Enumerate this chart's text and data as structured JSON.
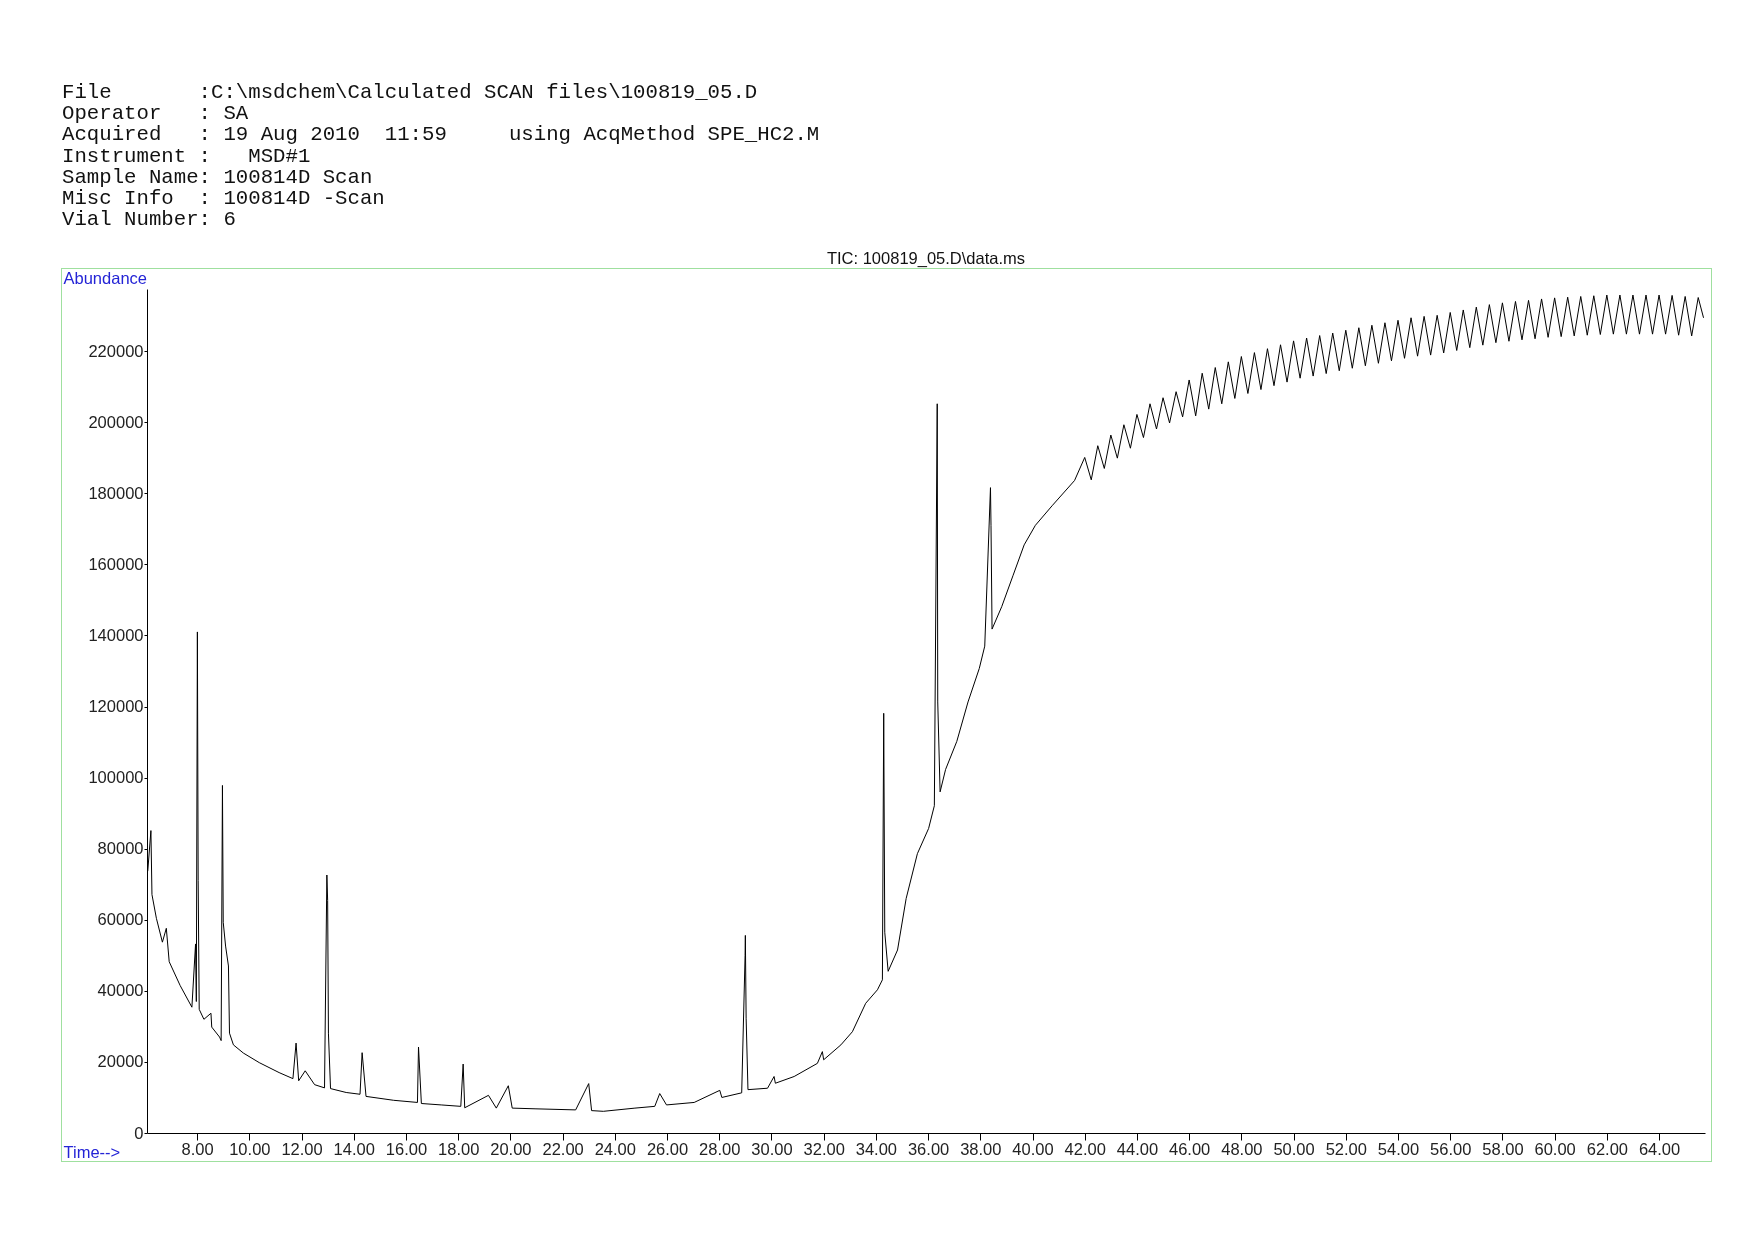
{
  "chart_data": {
    "type": "line",
    "title": "TIC: 100819_05.D\\data.ms",
    "xlabel": "Time-->",
    "ylabel": "Abundance",
    "annotations": [
      "File       :C:\\msdchem\\Calculated SCAN files\\100819_05.D",
      "Operator   : SA",
      "Acquired   : 19 Aug 2010  11:59     using AcqMethod SPE_HC2.M",
      "Instrument :   MSD#1",
      "Sample Name: 100814D Scan",
      "Misc Info  : 100814D -Scan",
      "Vial Number: 6"
    ],
    "x": [
      6.11,
      6.23,
      6.27,
      6.44,
      6.67,
      6.82,
      6.93,
      7.35,
      7.8,
      7.94,
      7.97,
      8.01,
      8.04,
      8.08,
      8.26,
      8.53,
      8.56,
      8.86,
      8.92,
      8.97,
      9.0,
      9.09,
      9.2,
      9.24,
      9.39,
      9.77,
      10.38,
      11.14,
      11.67,
      11.79,
      11.89,
      12.14,
      12.5,
      12.88,
      12.97,
      13.0,
      13.03,
      13.11,
      13.71,
      14.24,
      14.32,
      14.47,
      15.53,
      16.44,
      16.48,
      16.59,
      17.35,
      18.1,
      18.19,
      18.25,
      19.16,
      19.46,
      19.92,
      20.07,
      20.98,
      22.5,
      23.0,
      23.11,
      23.56,
      24.77,
      25.53,
      25.72,
      25.98,
      27.04,
      28.02,
      28.1,
      28.86,
      28.99,
      29.0,
      29.03,
      29.1,
      29.85,
      30.1,
      30.15,
      30.87,
      31.76,
      31.95,
      32.0,
      32.66,
      33.1,
      33.61,
      34.06,
      34.25,
      34.3,
      34.34,
      34.47,
      34.83,
      35.16,
      35.59,
      36.02,
      36.24,
      36.35,
      36.37,
      36.46,
      36.67,
      37.1,
      37.53,
      37.96,
      38.17,
      38.39,
      38.41,
      38.45,
      38.82,
      39.25,
      39.68,
      40.11,
      40.75,
      41.61,
      42.0,
      42.25,
      42.5,
      42.75,
      43.0,
      43.25,
      43.5,
      43.75,
      44.0,
      44.25,
      44.5,
      44.75,
      45.0,
      45.25,
      45.5,
      45.75,
      46.0,
      46.25,
      46.5,
      46.75,
      47.0,
      47.25,
      47.5,
      47.75,
      48.0,
      48.25,
      48.5,
      48.75,
      49.0,
      49.25,
      49.5,
      49.75,
      50.0,
      50.25,
      50.5,
      50.75,
      51.0,
      51.25,
      51.5,
      51.75,
      52.0,
      52.25,
      52.5,
      52.75,
      53.0,
      53.25,
      53.5,
      53.75,
      54.0,
      54.25,
      54.5,
      54.75,
      55.0,
      55.25,
      55.5,
      55.75,
      56.0,
      56.25,
      56.5,
      56.75,
      57.0,
      57.25,
      57.5,
      57.75,
      58.0,
      58.25,
      58.5,
      58.75,
      59.0,
      59.25,
      59.5,
      59.75,
      60.0,
      60.25,
      60.5,
      60.75,
      61.0,
      61.25,
      61.5,
      61.75,
      62.0,
      62.25,
      62.5,
      62.75,
      63.0,
      63.25,
      63.5,
      63.75,
      64.0,
      64.25,
      64.5,
      64.75,
      65.0,
      65.25,
      65.5,
      65.7
    ],
    "values": [
      73800,
      85100,
      67100,
      60400,
      53700,
      57600,
      48200,
      41500,
      35400,
      53200,
      37000,
      141000,
      71000,
      34800,
      32000,
      33700,
      29800,
      27000,
      26000,
      97800,
      59300,
      52600,
      47000,
      28100,
      24800,
      22500,
      19800,
      17000,
      15300,
      25300,
      14700,
      17500,
      13600,
      12700,
      72600,
      65400,
      28100,
      12500,
      11400,
      10900,
      22600,
      10300,
      9200,
      8600,
      24200,
      8300,
      7900,
      7500,
      19400,
      7100,
      10600,
      7000,
      13300,
      7000,
      6800,
      6500,
      13900,
      6300,
      6100,
      7000,
      7500,
      11100,
      7900,
      8600,
      12000,
      10000,
      11300,
      49900,
      55600,
      32300,
      12200,
      12600,
      15900,
      14000,
      15900,
      19600,
      22900,
      20600,
      24800,
      28500,
      36500,
      40300,
      43100,
      118100,
      56500,
      45500,
      51500,
      66000,
      78600,
      85700,
      92100,
      205200,
      121300,
      96000,
      102300,
      110200,
      121300,
      130700,
      137000,
      181600,
      171000,
      141800,
      148100,
      156800,
      165500,
      171000,
      176500,
      183600,
      190100,
      183800,
      193400,
      187000,
      196400,
      189900,
      199300,
      192700,
      202200,
      195700,
      205200,
      198100,
      206900,
      199800,
      208600,
      201500,
      211900,
      201800,
      213800,
      203700,
      215400,
      205200,
      217000,
      206700,
      218500,
      208100,
      219600,
      209200,
      220700,
      210300,
      221800,
      211300,
      222900,
      212400,
      223700,
      213000,
      224400,
      213700,
      225100,
      214500,
      225900,
      215200,
      226600,
      215900,
      227300,
      216600,
      228000,
      217300,
      228700,
      218000,
      229400,
      218600,
      229800,
      218900,
      230100,
      219500,
      230900,
      220200,
      231600,
      221000,
      232400,
      221700,
      233100,
      222400,
      233600,
      222800,
      234000,
      223200,
      234300,
      223500,
      234700,
      223900,
      235000,
      224100,
      235200,
      224300,
      235400,
      224500,
      235600,
      224700,
      235800,
      224800,
      235800,
      224800,
      235800,
      224800,
      235800,
      224800,
      235800,
      224800,
      235700,
      224500,
      235400,
      224300,
      235100,
      229500
    ],
    "color": "#000000",
    "xlim": [
      6.08,
      65.76
    ],
    "ylim": [
      0,
      237500
    ],
    "xticks": [
      {
        "value": 8,
        "label": "8.00"
      },
      {
        "value": 10,
        "label": "10.00"
      },
      {
        "value": 12,
        "label": "12.00"
      },
      {
        "value": 14,
        "label": "14.00"
      },
      {
        "value": 16,
        "label": "16.00"
      },
      {
        "value": 18,
        "label": "18.00"
      },
      {
        "value": 20,
        "label": "20.00"
      },
      {
        "value": 22,
        "label": "22.00"
      },
      {
        "value": 24,
        "label": "24.00"
      },
      {
        "value": 26,
        "label": "26.00"
      },
      {
        "value": 28,
        "label": "28.00"
      },
      {
        "value": 30,
        "label": "30.00"
      },
      {
        "value": 32,
        "label": "32.00"
      },
      {
        "value": 34,
        "label": "34.00"
      },
      {
        "value": 36,
        "label": "36.00"
      },
      {
        "value": 38,
        "label": "38.00"
      },
      {
        "value": 40,
        "label": "40.00"
      },
      {
        "value": 42,
        "label": "42.00"
      },
      {
        "value": 44,
        "label": "44.00"
      },
      {
        "value": 46,
        "label": "46.00"
      },
      {
        "value": 48,
        "label": "48.00"
      },
      {
        "value": 50,
        "label": "50.00"
      },
      {
        "value": 52,
        "label": "52.00"
      },
      {
        "value": 54,
        "label": "54.00"
      },
      {
        "value": 56,
        "label": "56.00"
      },
      {
        "value": 58,
        "label": "58.00"
      },
      {
        "value": 60,
        "label": "60.00"
      },
      {
        "value": 62,
        "label": "62.00"
      },
      {
        "value": 64,
        "label": "64.00"
      }
    ],
    "yticks": [
      0,
      20000,
      40000,
      60000,
      80000,
      100000,
      120000,
      140000,
      160000,
      180000,
      200000,
      220000
    ],
    "grid": false
  }
}
